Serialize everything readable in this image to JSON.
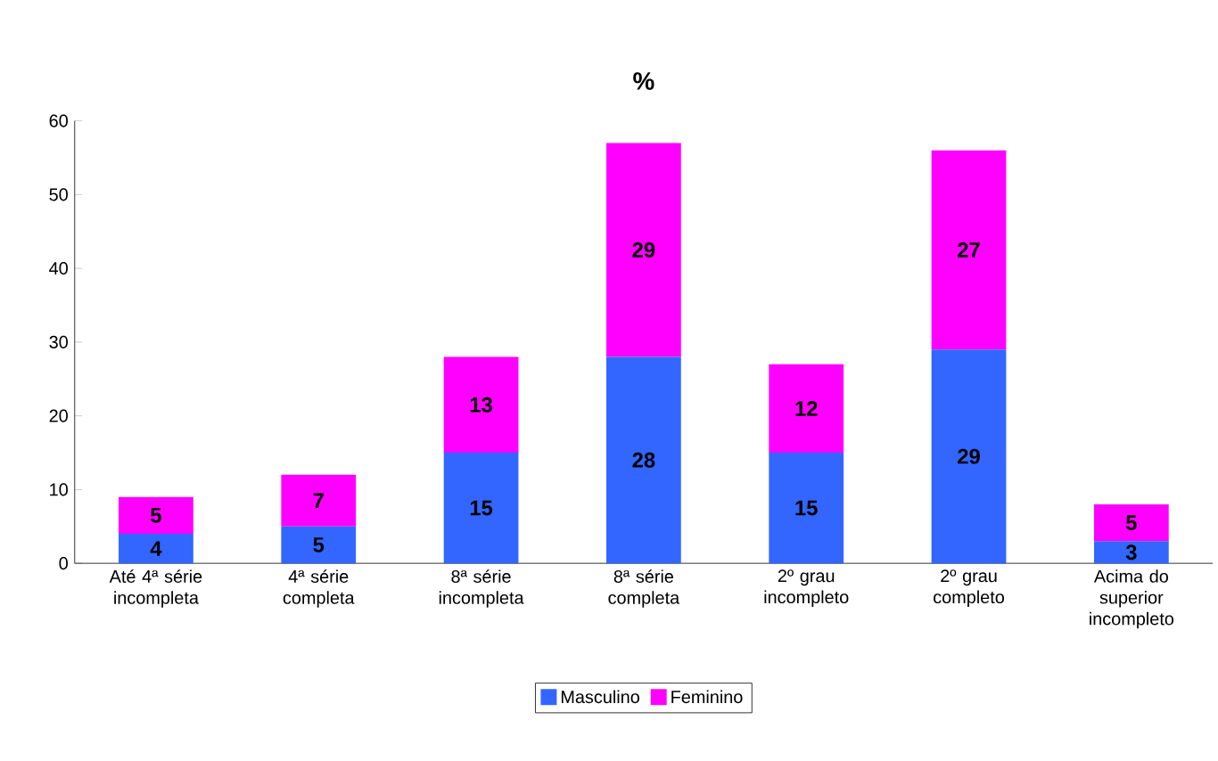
{
  "chart_data": {
    "type": "bar",
    "stacked": true,
    "title": "%",
    "categories": [
      "Até 4ª série incompleta",
      "4ª série completa",
      "8ª série incompleta",
      "8ª série completa",
      "2º grau incompleto",
      "2º grau completo",
      "Acima do superior incompleto"
    ],
    "series": [
      {
        "name": "Masculino",
        "color": "#3366ff",
        "values": [
          4,
          5,
          15,
          28,
          15,
          29,
          3
        ]
      },
      {
        "name": "Feminino",
        "color": "#ff00ff",
        "values": [
          5,
          7,
          13,
          29,
          12,
          27,
          5
        ]
      }
    ],
    "ylim": [
      0,
      60
    ],
    "yticks": [
      0,
      10,
      20,
      30,
      40,
      50,
      60
    ],
    "data_labels": true,
    "legend": "bottom",
    "grid": false
  }
}
